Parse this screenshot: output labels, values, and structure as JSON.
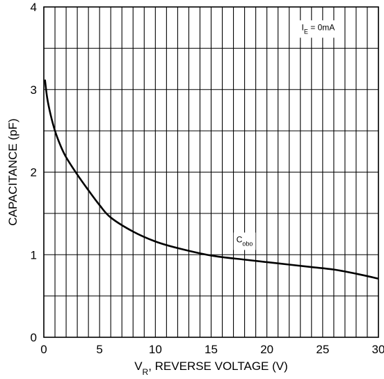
{
  "chart_data": {
    "type": "line",
    "title": "",
    "xlabel": "V",
    "xlabel_sub": "R",
    "xlabel_rest": ", REVERSE VOLTAGE (V)",
    "ylabel": "CAPACITANCE (pF)",
    "xlim": [
      0,
      30
    ],
    "ylim": [
      0,
      4
    ],
    "x_ticks": [
      0,
      5,
      10,
      15,
      20,
      25,
      30
    ],
    "y_ticks": [
      0,
      1,
      2,
      3,
      4
    ],
    "x_minor_step": 1,
    "y_minor_step": 0.5,
    "grid": true,
    "series": [
      {
        "name": "C",
        "name_sub": "obo",
        "color": "#000000",
        "x": [
          0.1,
          0.3,
          0.6,
          1,
          1.5,
          2,
          3,
          4,
          5,
          6,
          8,
          10,
          12,
          15,
          18,
          20,
          22,
          24,
          26,
          28,
          30
        ],
        "y": [
          3.12,
          2.9,
          2.7,
          2.5,
          2.32,
          2.18,
          1.97,
          1.78,
          1.6,
          1.45,
          1.28,
          1.16,
          1.08,
          0.99,
          0.94,
          0.91,
          0.88,
          0.85,
          0.82,
          0.77,
          0.71
        ]
      }
    ],
    "annotations": [
      {
        "main": "I",
        "sub": "E",
        "rest": " = 0mA",
        "x": 24.6,
        "y": 3.72
      },
      {
        "main": "C",
        "sub": "obo",
        "rest": "",
        "x": 18,
        "y": 1.15
      }
    ]
  }
}
